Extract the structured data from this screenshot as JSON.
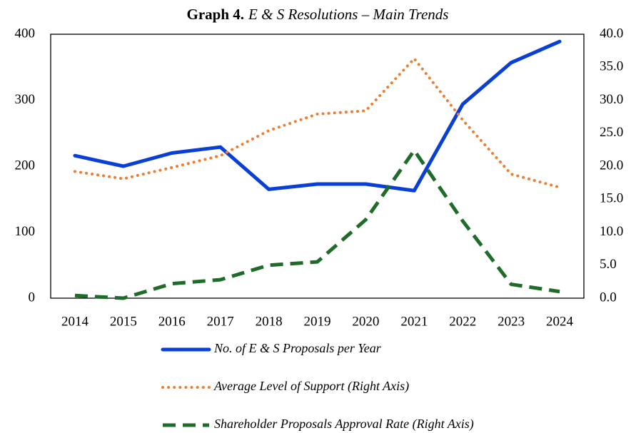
{
  "chart_data": {
    "type": "line",
    "title_label": "Graph 4.",
    "title": "E & S Resolutions – Main Trends",
    "categories": [
      "2014",
      "2015",
      "2016",
      "2017",
      "2018",
      "2019",
      "2020",
      "2021",
      "2022",
      "2023",
      "2024"
    ],
    "ylim": [
      0,
      400
    ],
    "yticks": [
      0,
      100,
      200,
      300,
      400
    ],
    "y2lim": [
      0,
      40
    ],
    "y2ticks": [
      {
        "value": 0,
        "label": "0.0"
      },
      {
        "value": 5,
        "label": "5.0"
      },
      {
        "value": 10,
        "label": "10.0"
      },
      {
        "value": 15,
        "label": "15.0"
      },
      {
        "value": 20,
        "label": "20.0"
      },
      {
        "value": 25,
        "label": "25.0"
      },
      {
        "value": 30,
        "label": "30.0"
      },
      {
        "value": 35,
        "label": "35.0"
      },
      {
        "value": 40,
        "label": "40.0"
      }
    ],
    "series": [
      {
        "name": "No. of E & S Proposals per Year",
        "color": "#0a3fd6",
        "style": "solid",
        "values": [
          216,
          200,
          220,
          229,
          165,
          173,
          173,
          163,
          294,
          357,
          389
        ]
      },
      {
        "name": "Average Level of Support (Right Axis)",
        "color": "#ed7d31",
        "style": "dotted",
        "axis": "y2",
        "values": [
          19.2,
          18.1,
          19.8,
          21.6,
          25.4,
          27.9,
          28.4,
          36.3,
          27.0,
          18.8,
          16.8
        ]
      },
      {
        "name": "Shareholder Proposals Approval Rate (Right Axis)",
        "color": "#1e6b2a",
        "style": "dashed",
        "axis": "y2",
        "values": [
          0.4,
          0,
          2.2,
          2.8,
          5.0,
          5.5,
          11.9,
          22.4,
          11.7,
          2.1,
          1.0
        ]
      }
    ]
  }
}
